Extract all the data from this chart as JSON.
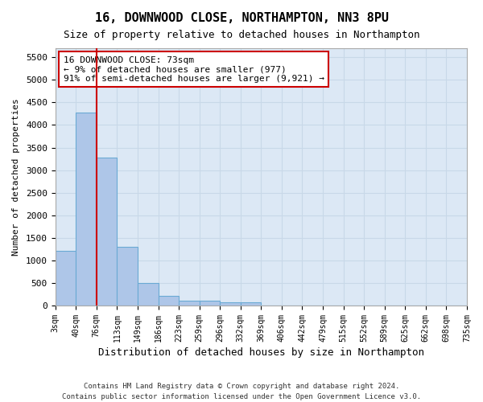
{
  "title1": "16, DOWNWOOD CLOSE, NORTHAMPTON, NN3 8PU",
  "title2": "Size of property relative to detached houses in Northampton",
  "xlabel": "Distribution of detached houses by size in Northampton",
  "ylabel": "Number of detached properties",
  "bin_labels": [
    "3sqm",
    "40sqm",
    "76sqm",
    "113sqm",
    "149sqm",
    "186sqm",
    "223sqm",
    "259sqm",
    "296sqm",
    "332sqm",
    "369sqm",
    "406sqm",
    "442sqm",
    "479sqm",
    "515sqm",
    "552sqm",
    "589sqm",
    "625sqm",
    "662sqm",
    "698sqm",
    "735sqm"
  ],
  "bar_values": [
    1220,
    4270,
    3270,
    1300,
    500,
    210,
    110,
    110,
    80,
    70,
    0,
    0,
    0,
    0,
    0,
    0,
    0,
    0,
    0,
    0
  ],
  "bar_color": "#aec6e8",
  "bar_edge_color": "#6aaad4",
  "grid_color": "#c8d8e8",
  "background_color": "#dce8f5",
  "vline_x": 1,
  "vline_color": "#cc0000",
  "ylim": [
    0,
    5700
  ],
  "yticks": [
    0,
    500,
    1000,
    1500,
    2000,
    2500,
    3000,
    3500,
    4000,
    4500,
    5000,
    5500
  ],
  "annotation_text": "16 DOWNWOOD CLOSE: 73sqm\n← 9% of detached houses are smaller (977)\n91% of semi-detached houses are larger (9,921) →",
  "annotation_box_color": "#ffffff",
  "annotation_border_color": "#cc0000",
  "footer1": "Contains HM Land Registry data © Crown copyright and database right 2024.",
  "footer2": "Contains public sector information licensed under the Open Government Licence v3.0."
}
